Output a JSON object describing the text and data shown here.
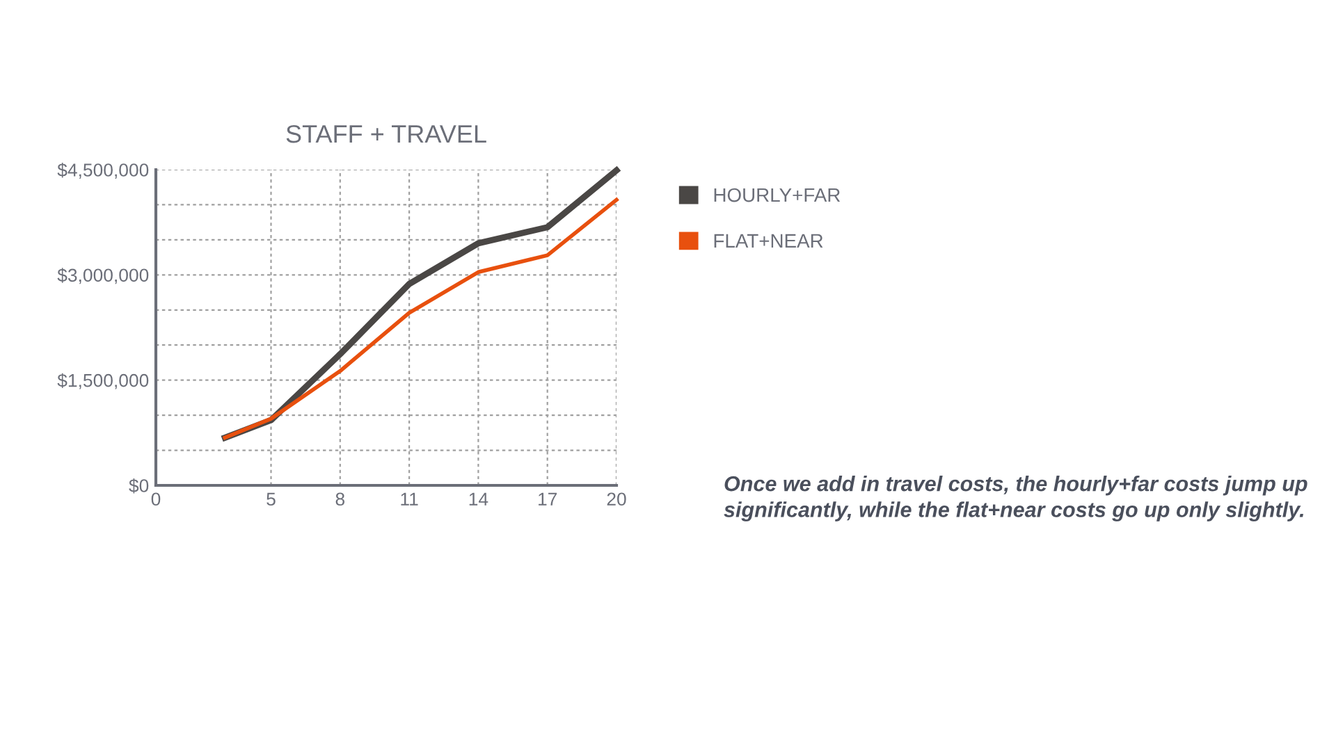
{
  "chart_data": {
    "type": "line",
    "title": "STAFF + TRAVEL",
    "x": [
      3,
      5,
      8,
      11,
      14,
      17,
      20
    ],
    "series": [
      {
        "name": "HOURLY+FAR",
        "color": "#4a4745",
        "values": [
          680000,
          930000,
          1870000,
          2870000,
          3450000,
          3680000,
          4490000
        ]
      },
      {
        "name": "FLAT+NEAR",
        "color": "#e8500e",
        "values": [
          680000,
          950000,
          1630000,
          2460000,
          3040000,
          3280000,
          4070000
        ]
      }
    ],
    "xlim": [
      0,
      20
    ],
    "xticks": [
      0,
      5,
      8,
      11,
      14,
      17,
      20
    ],
    "ylim": [
      0,
      4500000
    ],
    "yticks": [
      {
        "value": 0,
        "label": "$0"
      },
      {
        "value": 500000,
        "label": null
      },
      {
        "value": 1000000,
        "label": null
      },
      {
        "value": 1500000,
        "label": "$1,500,000"
      },
      {
        "value": 2000000,
        "label": null
      },
      {
        "value": 2500000,
        "label": null
      },
      {
        "value": 3000000,
        "label": "$3,000,000"
      },
      {
        "value": 3500000,
        "label": null
      },
      {
        "value": 4000000,
        "label": null
      },
      {
        "value": 4500000,
        "label": "$4,500,000"
      }
    ],
    "grid": true,
    "legend": "right",
    "line_style": "solid",
    "marker": "none",
    "annotations": [
      "Once we add in travel costs, the hourly+far costs jump up significantly, while the flat+near costs go up only slightly."
    ]
  }
}
